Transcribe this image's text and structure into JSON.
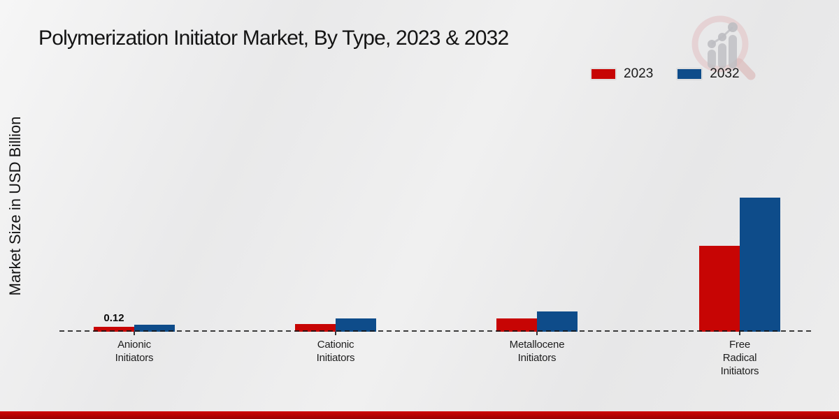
{
  "header": {
    "title": "Polymerization Initiator Market, By Type, 2023 & 2032"
  },
  "y_axis": {
    "label": "Market Size in USD Billion"
  },
  "legend": {
    "items": [
      {
        "label": "2023",
        "color": "#c70504"
      },
      {
        "label": "2032",
        "color": "#0e4c8a"
      }
    ]
  },
  "chart_data": {
    "type": "bar",
    "title": "Polymerization Initiator Market, By Type, 2023 & 2032",
    "ylabel": "Market Size in USD Billion",
    "xlabel": "",
    "categories": [
      "Anionic\nInitiators",
      "Cationic\nInitiators",
      "Metallocene\nInitiators",
      "Free\nRadical\nInitiators"
    ],
    "series": [
      {
        "name": "2023",
        "color": "#c70504",
        "values": [
          0.12,
          0.18,
          0.33,
          2.1
        ]
      },
      {
        "name": "2032",
        "color": "#0e4c8a",
        "values": [
          0.17,
          0.32,
          0.49,
          3.29
        ]
      }
    ],
    "annotations": [
      {
        "series_index": 0,
        "category_index": 0,
        "text": "0.12"
      }
    ],
    "ylim": [
      0,
      6
    ],
    "grid": false,
    "baseline_style": "dashed",
    "legend_position": "top-right"
  },
  "footer": {
    "strip_gradient": [
      "#cf0606",
      "#9c0101"
    ]
  }
}
